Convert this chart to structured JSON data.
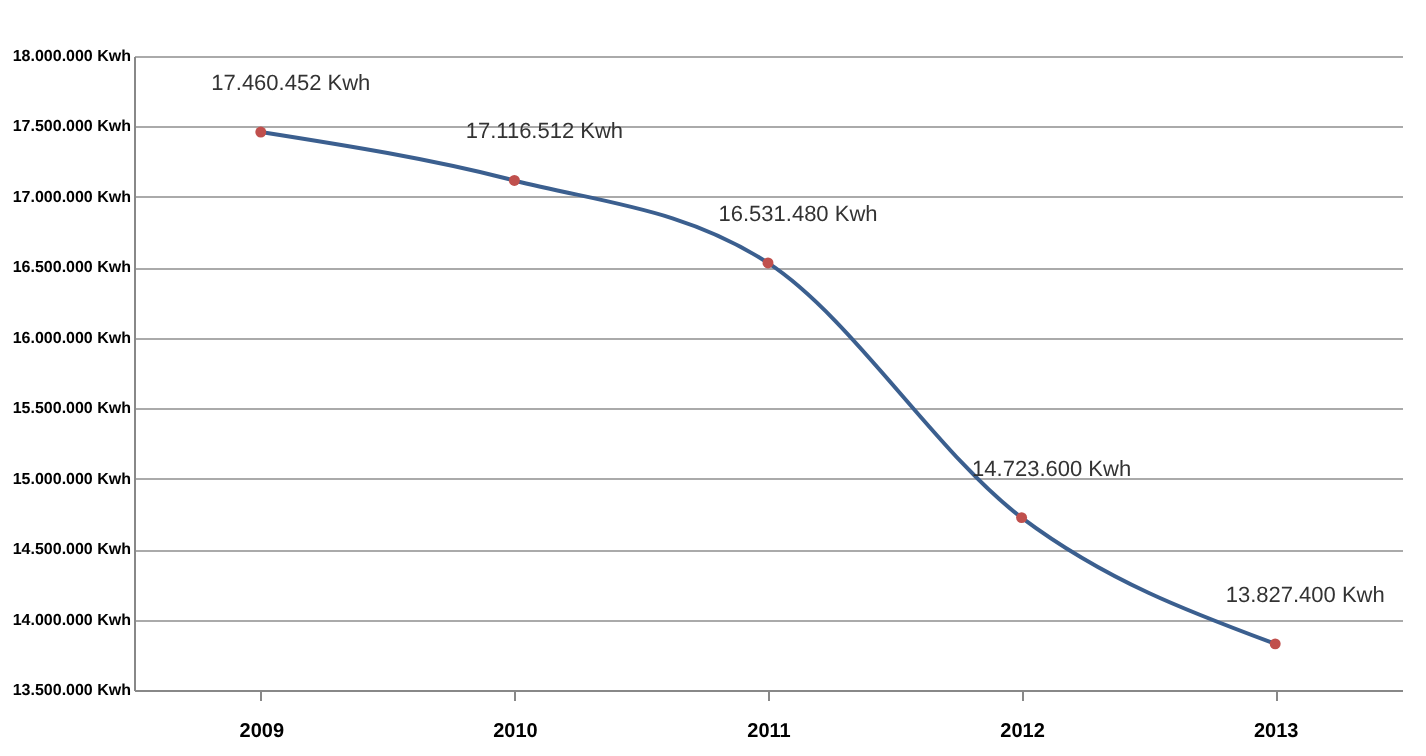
{
  "chart_data": {
    "type": "line",
    "categories": [
      "2009",
      "2010",
      "2011",
      "2012",
      "2013"
    ],
    "series": [
      {
        "color": "#3b5f8f",
        "values": [
          17460452,
          17116512,
          16531480,
          14723600,
          13827400
        ],
        "colors": [
          "#c0504d",
          "#c0504d",
          "#c0504d",
          "#c0504d",
          "#c0504d"
        ],
        "value_labels": [
          "17.460.452 Kwh",
          "17.116.512 Kwh",
          "16.531.480 Kwh",
          "14.723.600 Kwh",
          "13.827.400 Kwh"
        ]
      }
    ],
    "marker": "circle",
    "ylim": [
      13500000,
      18000000
    ],
    "yticks": [
      {
        "value": 13500000,
        "label": "13.500.000 Kwh"
      },
      {
        "value": 14000000,
        "label": "14.000.000 Kwh"
      },
      {
        "value": 14500000,
        "label": "14.500.000 Kwh"
      },
      {
        "value": 15000000,
        "label": "15.000.000 Kwh"
      },
      {
        "value": 15500000,
        "label": "15.500.000 Kwh"
      },
      {
        "value": 16000000,
        "label": "16.000.000 Kwh"
      },
      {
        "value": 16500000,
        "label": "16.500.000 Kwh"
      },
      {
        "value": 17000000,
        "label": "17.000.000 Kwh"
      },
      {
        "value": 17500000,
        "label": "17.500.000 Kwh"
      },
      {
        "value": 18000000,
        "label": "18.000.000 Kwh"
      }
    ],
    "grid": "y",
    "legend": false
  }
}
